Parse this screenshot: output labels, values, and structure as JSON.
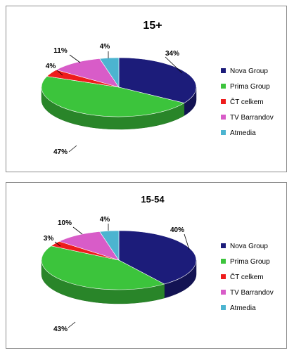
{
  "chart_data": [
    {
      "type": "pie",
      "title": "15+",
      "categories": [
        "Nova Group",
        "Prima Group",
        "ČT celkem",
        "TV Barrandov",
        "Atmedia"
      ],
      "values": [
        34,
        47,
        4,
        11,
        4
      ],
      "data_labels": [
        "34%",
        "47%",
        "4%",
        "11%",
        "4%"
      ],
      "colors": [
        "#1c1c7a",
        "#3cc43c",
        "#ee1c1c",
        "#d85cc8",
        "#4cb4d0"
      ],
      "legend_position": "right",
      "style": "3d"
    },
    {
      "type": "pie",
      "title": "15-54",
      "categories": [
        "Nova Group",
        "Prima Group",
        "ČT celkem",
        "TV Barrandov",
        "Atmedia"
      ],
      "values": [
        40,
        43,
        3,
        10,
        4
      ],
      "data_labels": [
        "40%",
        "43%",
        "3%",
        "10%",
        "4%"
      ],
      "colors": [
        "#1c1c7a",
        "#3cc43c",
        "#ee1c1c",
        "#d85cc8",
        "#4cb4d0"
      ],
      "legend_position": "right",
      "style": "3d"
    }
  ]
}
